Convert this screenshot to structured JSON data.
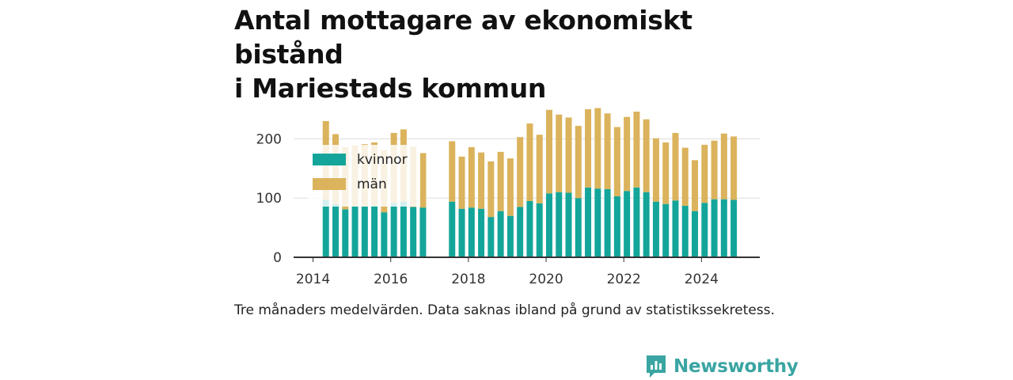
{
  "title_lines": [
    "Antal mottagare av ekonomiskt bistånd",
    "i Mariestads kommun"
  ],
  "caption": "Tre månaders medelvärden. Data saknas ibland på grund av statistikssekretess.",
  "brand": "Newsworthy",
  "colors": {
    "kvinnor": "#14a59a",
    "man": "#dbb35c",
    "grid": "#dddddd",
    "axis": "#333333"
  },
  "chart_data": {
    "type": "bar",
    "stacked": true,
    "xlabel": "",
    "ylabel": "",
    "ylim": [
      0,
      260
    ],
    "yticks": [
      0,
      100,
      200
    ],
    "xticks": [
      2014,
      2016,
      2018,
      2020,
      2022,
      2024
    ],
    "grid": true,
    "legend_position": "top-left",
    "x": [
      2014.33,
      2014.58,
      2014.83,
      2015.08,
      2015.33,
      2015.58,
      2015.83,
      2016.08,
      2016.33,
      2016.58,
      2016.83,
      2017.58,
      2017.83,
      2018.08,
      2018.33,
      2018.58,
      2018.83,
      2019.08,
      2019.33,
      2019.58,
      2019.83,
      2020.08,
      2020.33,
      2020.58,
      2020.83,
      2021.08,
      2021.33,
      2021.58,
      2021.83,
      2022.08,
      2022.33,
      2022.58,
      2022.83,
      2023.08,
      2023.33,
      2023.58,
      2023.83,
      2024.08,
      2024.33,
      2024.58,
      2024.83
    ],
    "series": [
      {
        "name": "kvinnor",
        "values": [
          97,
          90,
          81,
          86,
          86,
          87,
          76,
          92,
          94,
          85,
          84,
          94,
          82,
          84,
          82,
          68,
          78,
          70,
          85,
          95,
          91,
          108,
          110,
          109,
          100,
          118,
          116,
          115,
          103,
          112,
          118,
          110,
          94,
          90,
          96,
          87,
          78,
          92,
          98,
          98,
          97
        ]
      },
      {
        "name": "män",
        "values": [
          133,
          118,
          105,
          103,
          105,
          107,
          105,
          118,
          122,
          102,
          92,
          102,
          88,
          102,
          95,
          94,
          100,
          97,
          118,
          131,
          116,
          141,
          131,
          127,
          122,
          132,
          136,
          128,
          117,
          125,
          128,
          123,
          107,
          104,
          114,
          98,
          86,
          98,
          99,
          111,
          107
        ]
      }
    ]
  }
}
